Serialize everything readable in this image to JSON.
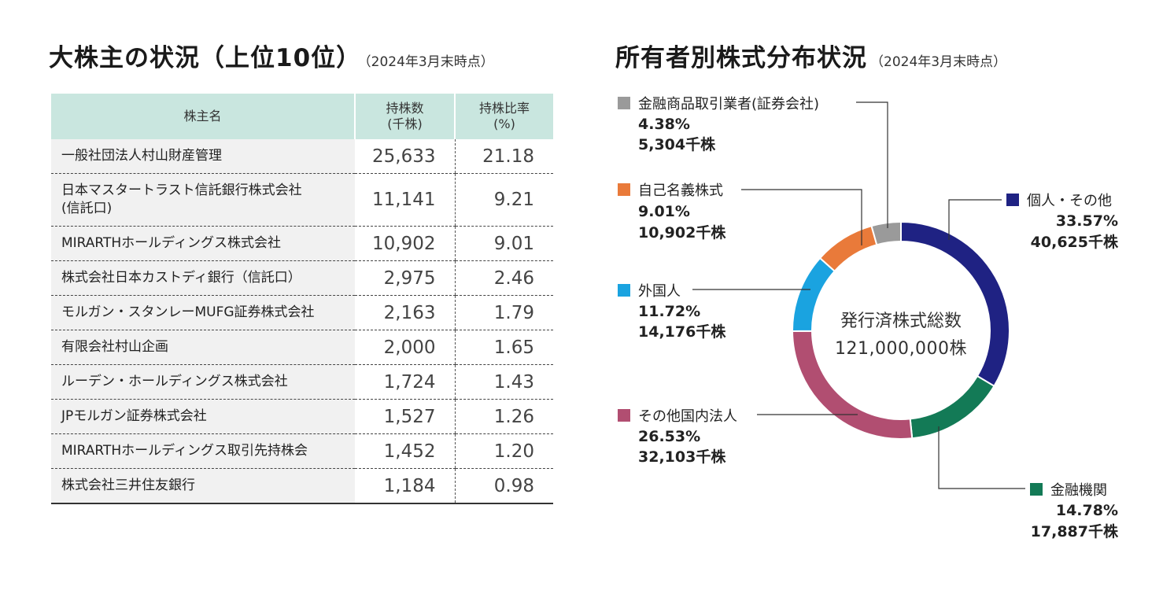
{
  "left": {
    "title": "大株主の状況（上位10位）",
    "subtitle": "（2024年3月末時点）",
    "headers": {
      "name": "株主名",
      "shares": "持株数\n(千株)",
      "ratio": "持株比率\n(%)"
    },
    "rows": [
      {
        "name": "一般社団法人村山財産管理",
        "shares": "25,633",
        "ratio": "21.18"
      },
      {
        "name": "日本マスタートラスト信託銀行株式会社\n(信託口)",
        "shares": "11,141",
        "ratio": "9.21"
      },
      {
        "name": "MIRARTHホールディングス株式会社",
        "shares": "10,902",
        "ratio": "9.01"
      },
      {
        "name": "株式会社日本カストディ銀行（信託口）",
        "shares": "2,975",
        "ratio": "2.46"
      },
      {
        "name": "モルガン・スタンレーMUFG証券株式会社",
        "shares": "2,163",
        "ratio": "1.79"
      },
      {
        "name": "有限会社村山企画",
        "shares": "2,000",
        "ratio": "1.65"
      },
      {
        "name": "ルーデン・ホールディングス株式会社",
        "shares": "1,724",
        "ratio": "1.43"
      },
      {
        "name": "JPモルガン証券株式会社",
        "shares": "1,527",
        "ratio": "1.26"
      },
      {
        "name": "MIRARTHホールディングス取引先持株会",
        "shares": "1,452",
        "ratio": "1.20"
      },
      {
        "name": "株式会社三井住友銀行",
        "shares": "1,184",
        "ratio": "0.98"
      }
    ]
  },
  "right": {
    "title": "所有者別株式分布状況",
    "subtitle": "（2024年3月末時点）"
  },
  "chart_data": {
    "type": "pie",
    "donut": true,
    "center_label": "発行済株式総数",
    "center_value": "121,000,000株",
    "segments": [
      {
        "key": "individual",
        "name": "個人・その他",
        "percent": "33.57%",
        "value": 33.57,
        "shares": "40,625千株",
        "color": "#1f2283"
      },
      {
        "key": "financial",
        "name": "金融機関",
        "percent": "14.78%",
        "value": 14.78,
        "shares": "17,887千株",
        "color": "#137a56"
      },
      {
        "key": "domestic",
        "name": "その他国内法人",
        "percent": "26.53%",
        "value": 26.53,
        "shares": "32,103千株",
        "color": "#b14e71"
      },
      {
        "key": "foreign",
        "name": "外国人",
        "percent": "11.72%",
        "value": 11.72,
        "shares": "14,176千株",
        "color": "#1aa3e0"
      },
      {
        "key": "treasury",
        "name": "自己名義株式",
        "percent": "9.01%",
        "value": 9.01,
        "shares": "10,902千株",
        "color": "#e97a3a"
      },
      {
        "key": "securities",
        "name": "金融商品取引業者(証券会社)",
        "percent": "4.38%",
        "value": 4.38,
        "shares": "5,304千株",
        "color": "#9a9a9a"
      }
    ]
  }
}
